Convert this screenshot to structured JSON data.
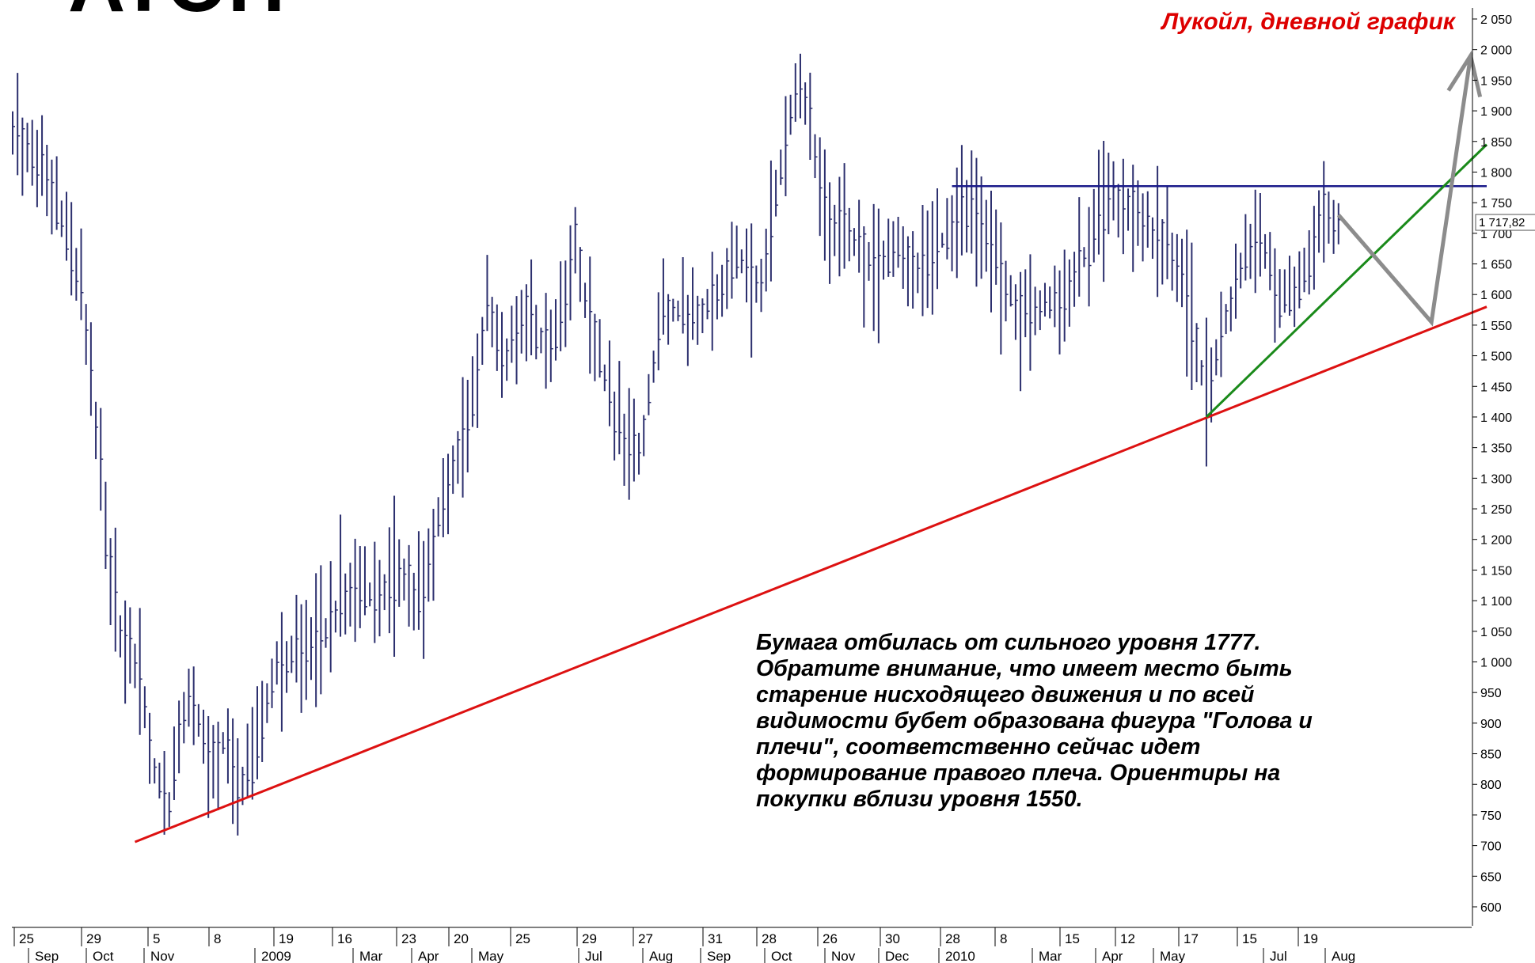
{
  "logo_text": "ATOH",
  "annotation": "Бумага отбилась от сильного уровня 1777.\nОбратите внимание, что имеет место быть\nстарение нисходящего движения и по всей\nвидимости бубет образована фигура \"Голова и\nплечи\", соответственно сейчас идет\nформирование правого плеча. Ориентиры на\nпокупки вблизи уровня 1550.",
  "chart_data": {
    "type": "bar",
    "title": "Лукойл, дневной график",
    "last_price_label": "1 717,82",
    "last_price": 1717.82,
    "y_axis": {
      "ylim": [
        560,
        2070
      ],
      "ticks": [
        600,
        650,
        700,
        750,
        800,
        850,
        900,
        950,
        1000,
        1050,
        1100,
        1150,
        1200,
        1250,
        1300,
        1350,
        1400,
        1450,
        1500,
        1550,
        1600,
        1650,
        1700,
        1750,
        1800,
        1850,
        1900,
        1950,
        2000,
        2050
      ],
      "tick_labels": [
        "600",
        "650",
        "700",
        "750",
        "800",
        "850",
        "900",
        "950",
        "1 000",
        "1 050",
        "1 100",
        "1 150",
        "1 200",
        "1 250",
        "1 300",
        "1 350",
        "1 400",
        "1 450",
        "1 500",
        "1 550",
        "1 600",
        "1 650",
        "1 700",
        "1 750",
        "1 800",
        "1 850",
        "1 900",
        "1 950",
        "2 000",
        "2 050"
      ]
    },
    "x_axis": {
      "day_labels": [
        "25",
        "29",
        "5",
        "8",
        "19",
        "16",
        "23",
        "20",
        "25",
        "29",
        "27",
        "31",
        "28",
        "26",
        "30",
        "28",
        "8",
        "15",
        "12",
        "17",
        "15",
        "19"
      ],
      "month_labels": [
        "Sep",
        "Oct",
        "Nov",
        "2009",
        "Mar",
        "Apr",
        "May",
        "Jul",
        "Aug",
        "Sep",
        "Oct",
        "Nov",
        "Dec",
        "2010",
        "Mar",
        "Apr",
        "May",
        "Jul",
        "Aug"
      ]
    },
    "price_path": [
      [
        0,
        1870
      ],
      [
        6,
        1800
      ],
      [
        8,
        1760
      ],
      [
        11,
        1700
      ],
      [
        14,
        1600
      ],
      [
        16,
        1480
      ],
      [
        19,
        1200
      ],
      [
        22,
        1040
      ],
      [
        26,
        980
      ],
      [
        29,
        820
      ],
      [
        32,
        760
      ],
      [
        34,
        880
      ],
      [
        37,
        950
      ],
      [
        40,
        820
      ],
      [
        43,
        870
      ],
      [
        46,
        800
      ],
      [
        49,
        830
      ],
      [
        54,
        1000
      ],
      [
        59,
        1010
      ],
      [
        64,
        1050
      ],
      [
        69,
        1130
      ],
      [
        74,
        1100
      ],
      [
        79,
        1150
      ],
      [
        84,
        1100
      ],
      [
        89,
        1300
      ],
      [
        94,
        1420
      ],
      [
        97,
        1600
      ],
      [
        100,
        1480
      ],
      [
        105,
        1570
      ],
      [
        110,
        1500
      ],
      [
        115,
        1680
      ],
      [
        118,
        1550
      ],
      [
        123,
        1400
      ],
      [
        128,
        1330
      ],
      [
        133,
        1580
      ],
      [
        138,
        1570
      ],
      [
        143,
        1580
      ],
      [
        148,
        1660
      ],
      [
        153,
        1610
      ],
      [
        157,
        1800
      ],
      [
        160,
        1940
      ],
      [
        163,
        1900
      ],
      [
        166,
        1720
      ],
      [
        171,
        1700
      ],
      [
        176,
        1640
      ],
      [
        181,
        1670
      ],
      [
        186,
        1640
      ],
      [
        191,
        1700
      ],
      [
        196,
        1740
      ],
      [
        201,
        1650
      ],
      [
        206,
        1560
      ],
      [
        211,
        1580
      ],
      [
        216,
        1600
      ],
      [
        221,
        1700
      ],
      [
        225,
        1760
      ],
      [
        230,
        1730
      ],
      [
        235,
        1690
      ],
      [
        240,
        1600
      ],
      [
        244,
        1430
      ],
      [
        247,
        1530
      ],
      [
        251,
        1650
      ],
      [
        255,
        1700
      ],
      [
        259,
        1580
      ],
      [
        263,
        1610
      ],
      [
        266,
        1680
      ],
      [
        268,
        1740
      ],
      [
        271,
        1720
      ]
    ],
    "levels": [
      {
        "name": "resistance",
        "value": 1777,
        "from_x": 192,
        "to_x": 300
      },
      {
        "name": "red-support-line",
        "points": [
          [
            25,
            706
          ],
          [
            300,
            1580
          ]
        ]
      },
      {
        "name": "green-support-line",
        "points": [
          [
            244,
            1400
          ],
          [
            300,
            1845
          ]
        ]
      },
      {
        "name": "gray-projection",
        "points": [
          [
            271,
            1730
          ],
          [
            290,
            1555
          ],
          [
            298,
            1990
          ]
        ]
      }
    ],
    "grid": false
  },
  "colors": {
    "bars": "#2c2f6e",
    "resistance": "#1a1a8a",
    "support": "#dd1111",
    "trend": "#1a8a1a",
    "projection": "#8c8c8c",
    "title": "#dd0000"
  }
}
